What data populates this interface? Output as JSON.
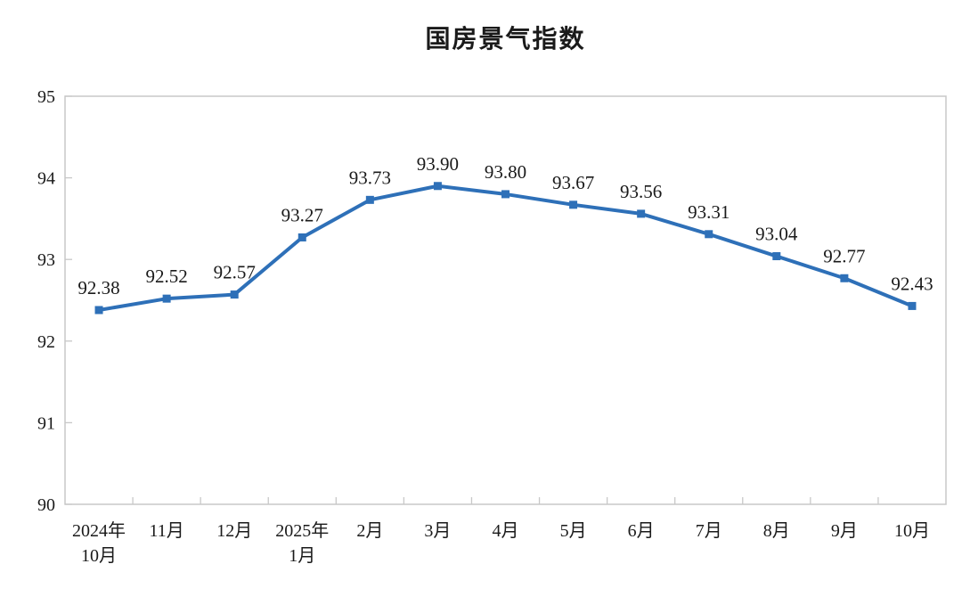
{
  "chart_data": {
    "type": "line",
    "title": "国房景气指数",
    "categories": [
      [
        "2024年",
        "10月"
      ],
      [
        "11月"
      ],
      [
        "12月"
      ],
      [
        "2025年",
        "1月"
      ],
      [
        "2月"
      ],
      [
        "3月"
      ],
      [
        "4月"
      ],
      [
        "5月"
      ],
      [
        "6月"
      ],
      [
        "7月"
      ],
      [
        "8月"
      ],
      [
        "9月"
      ],
      [
        "10月"
      ]
    ],
    "values": [
      92.38,
      92.52,
      92.57,
      93.27,
      93.73,
      93.9,
      93.8,
      93.67,
      93.56,
      93.31,
      93.04,
      92.77,
      92.43
    ],
    "value_labels": [
      "92.38",
      "92.52",
      "92.57",
      "93.27",
      "93.73",
      "93.90",
      "93.80",
      "93.67",
      "93.56",
      "93.31",
      "93.04",
      "92.77",
      "92.43"
    ],
    "ylim": [
      90,
      95
    ],
    "yticks": [
      90,
      91,
      92,
      93,
      94,
      95
    ],
    "grid": false,
    "legend": "none",
    "marker": "square",
    "line_color": "#2E70B8",
    "axis_color": "#C8C8C8",
    "text_color": "#1a1a1a"
  }
}
